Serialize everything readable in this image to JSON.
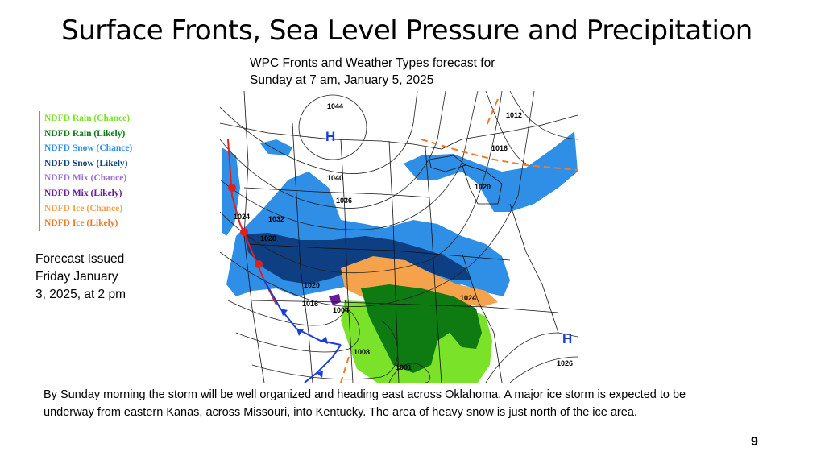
{
  "slide": {
    "title": "Surface Fronts, Sea Level Pressure and Precipitation",
    "subtitle_line1": "WPC Fronts and Weather Types forecast for",
    "subtitle_line2": "Sunday at 7 am, January 5, 2025",
    "issued_line1": "Forecast Issued",
    "issued_line2": "Friday January",
    "issued_line3": "3, 2025, at 2 pm",
    "caption": "By Sunday morning the storm will be well organized and heading east across Oklahoma. A major ice storm is expected to be underway from eastern Kanas, across Missouri, into Kentucky.  The area of heavy snow is just north of the ice area.",
    "page_number": "9"
  },
  "legend": {
    "items": [
      {
        "label": "NDFD Rain (Chance)",
        "color": "#7be22a"
      },
      {
        "label": "NDFD Rain (Likely)",
        "color": "#0d7a12"
      },
      {
        "label": "NDFD Snow (Chance)",
        "color": "#2f8ee6"
      },
      {
        "label": "NDFD Snow (Likely)",
        "color": "#0e3f82"
      },
      {
        "label": "NDFD Mix (Chance)",
        "color": "#9a72d6"
      },
      {
        "label": "NDFD Mix (Likely)",
        "color": "#6a1b9a"
      },
      {
        "label": "NDFD Ice (Chance)",
        "color": "#f4a24c"
      },
      {
        "label": "NDFD Ice (Likely)",
        "color": "#f07a28"
      }
    ]
  },
  "map": {
    "isobars": [
      "1044",
      "1012",
      "1016",
      "1040",
      "1036",
      "1020",
      "1024",
      "1032",
      "1028",
      "1020",
      "1016",
      "1004",
      "1024",
      "1008",
      "1001",
      "1026"
    ],
    "highs": [
      "H",
      "H"
    ],
    "colors": {
      "rain_chance": "#7be22a",
      "rain_likely": "#0d7a12",
      "snow_chance": "#2f8ee6",
      "snow_likely": "#0e3f82",
      "ice_chance": "#f4a24c",
      "mix_likely": "#6a1b9a",
      "cold_front": "#1a3fd6",
      "warm_front": "#e02020",
      "high_label": "#1a3fd6"
    }
  }
}
